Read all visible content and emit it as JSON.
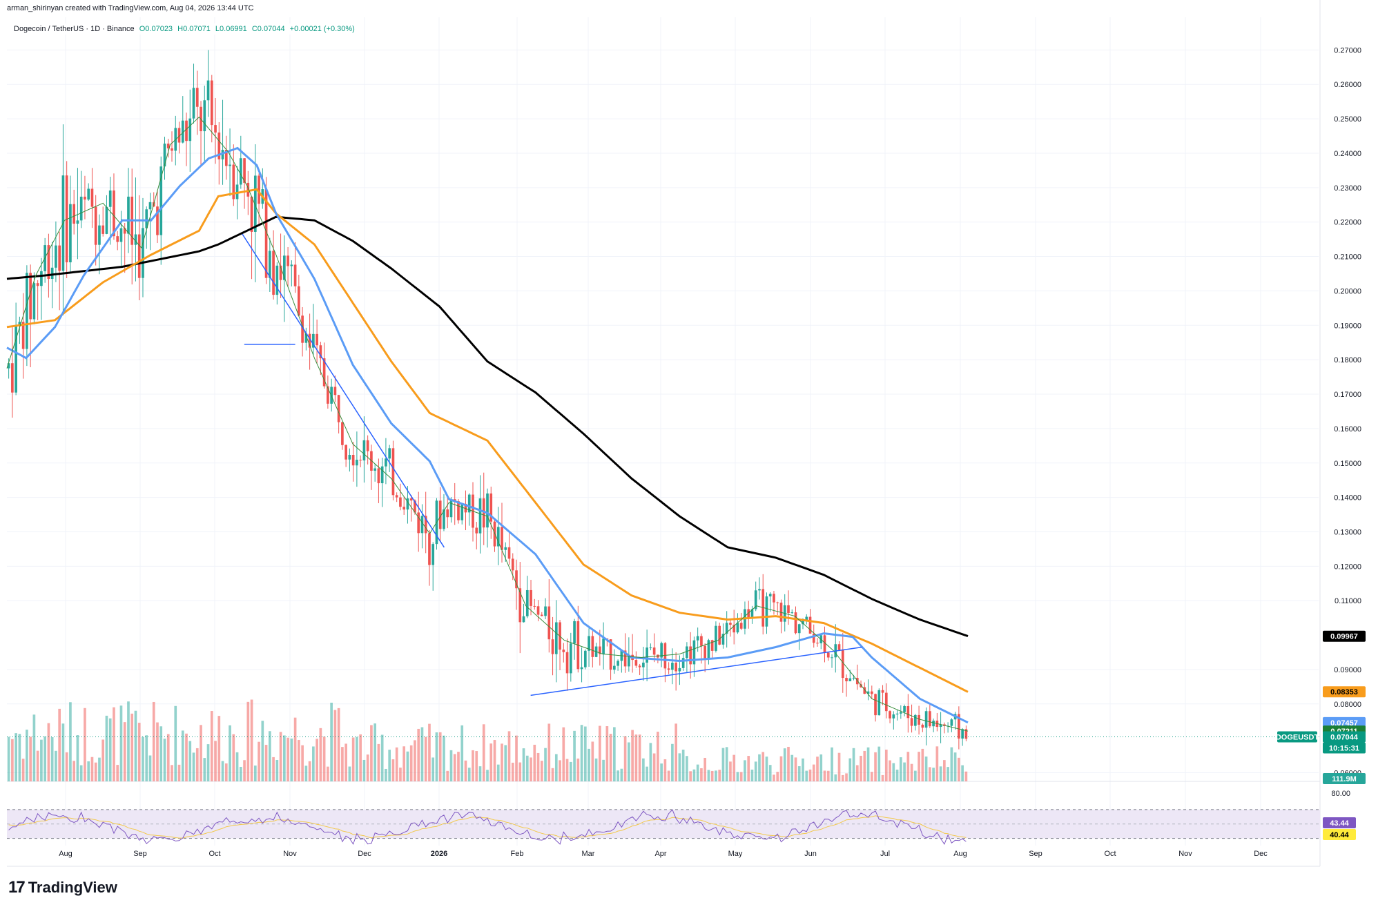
{
  "header": {
    "created_by": "arman_shirinyan created with TradingView.com, Aug 04, 2026 13:44 UTC"
  },
  "legend": {
    "symbol": "Dogecoin / TetherUS · 1D · Binance",
    "open": "O0.07023",
    "high": "H0.07071",
    "low": "L0.06991",
    "close": "C0.07044",
    "change": "+0.00021 (+0.30%)"
  },
  "chart_data": {
    "type": "candlestick",
    "y_ticks": [
      "0.27000",
      "0.26000",
      "0.25000",
      "0.24000",
      "0.23000",
      "0.22000",
      "0.21000",
      "0.20000",
      "0.19000",
      "0.18000",
      "0.17000",
      "0.16000",
      "0.15000",
      "0.14000",
      "0.13000",
      "0.12000",
      "0.11000",
      "0.09000",
      "0.08000",
      "0.06000"
    ],
    "x_ticks": [
      "Aug",
      "Sep",
      "Oct",
      "Nov",
      "Dec",
      "2026",
      "Feb",
      "Mar",
      "Apr",
      "May",
      "Jun",
      "Jul",
      "Aug",
      "Sep",
      "Oct",
      "Nov",
      "Dec"
    ],
    "ylim": [
      0.0575,
      0.2795
    ],
    "series": [
      {
        "label": "black",
        "color": "#000000",
        "x": [
          0,
          0.04,
          0.12,
          0.2,
          0.22,
          0.28,
          0.32,
          0.36,
          0.4,
          0.45,
          0.5,
          0.55,
          0.6,
          0.65,
          0.7,
          0.75,
          0.8,
          0.85,
          0.9,
          0.95,
          1.0
        ],
        "values": [
          0.2035,
          0.2045,
          0.207,
          0.2115,
          0.2135,
          0.2215,
          0.2205,
          0.2145,
          0.2065,
          0.1955,
          0.1795,
          0.1705,
          0.1585,
          0.1455,
          0.1345,
          0.1255,
          0.1225,
          0.1175,
          0.1105,
          0.1045,
          0.0997
        ]
      },
      {
        "label": "orange",
        "color": "#f89c1c",
        "x": [
          0,
          0.05,
          0.1,
          0.15,
          0.2,
          0.22,
          0.26,
          0.28,
          0.32,
          0.36,
          0.4,
          0.44,
          0.47,
          0.5,
          0.55,
          0.6,
          0.65,
          0.7,
          0.75,
          0.8,
          0.85,
          0.9,
          1.0
        ],
        "values": [
          0.1895,
          0.1915,
          0.2025,
          0.2105,
          0.2175,
          0.2275,
          0.2295,
          0.2225,
          0.2135,
          0.1965,
          0.1795,
          0.1645,
          0.1605,
          0.1565,
          0.1385,
          0.1205,
          0.1115,
          0.1065,
          0.1045,
          0.1055,
          0.1035,
          0.0975,
          0.0835
        ]
      },
      {
        "label": "blue",
        "color": "#5b9cf6",
        "x": [
          0,
          0.02,
          0.05,
          0.08,
          0.12,
          0.15,
          0.18,
          0.21,
          0.24,
          0.26,
          0.28,
          0.32,
          0.36,
          0.4,
          0.44,
          0.46,
          0.5,
          0.55,
          0.6,
          0.65,
          0.7,
          0.75,
          0.8,
          0.85,
          0.88,
          0.9,
          0.95,
          1.0
        ],
        "values": [
          0.1835,
          0.1805,
          0.1895,
          0.2045,
          0.2205,
          0.2205,
          0.2305,
          0.2385,
          0.2415,
          0.2365,
          0.2225,
          0.2035,
          0.1785,
          0.1615,
          0.1505,
          0.1395,
          0.1355,
          0.1235,
          0.1035,
          0.0935,
          0.0925,
          0.0935,
          0.0965,
          0.1005,
          0.0995,
          0.0935,
          0.0815,
          0.0746
        ]
      },
      {
        "label": "green",
        "color": "#388e3c",
        "x": [
          0,
          0.03,
          0.06,
          0.1,
          0.14,
          0.17,
          0.2,
          0.23,
          0.25,
          0.28,
          0.32,
          0.36,
          0.4,
          0.44,
          0.46,
          0.5,
          0.54,
          0.58,
          0.62,
          0.66,
          0.7,
          0.74,
          0.78,
          0.82,
          0.86,
          0.9,
          0.95,
          1.0
        ],
        "values": [
          0.1775,
          0.2045,
          0.2205,
          0.2255,
          0.2125,
          0.2425,
          0.2505,
          0.2405,
          0.2305,
          0.2105,
          0.1805,
          0.1555,
          0.1455,
          0.1295,
          0.1385,
          0.1345,
          0.1085,
          0.0985,
          0.0945,
          0.0935,
          0.0945,
          0.0985,
          0.1085,
          0.1055,
          0.0955,
          0.0815,
          0.0755,
          0.0721
        ]
      }
    ],
    "trendlines": [
      {
        "x": [
          0.245,
          0.455
        ],
        "values": [
          0.2165,
          0.1255
        ],
        "color": "#2962ff"
      },
      {
        "x": [
          0.247,
          0.3
        ],
        "values": [
          0.1845,
          0.1845
        ],
        "color": "#2962ff"
      },
      {
        "x": [
          0.545,
          0.89
        ],
        "values": [
          0.0825,
          0.0965
        ],
        "color": "#2962ff"
      }
    ],
    "last_price_line": 0.07044,
    "price_tags": [
      {
        "value": 0.09967,
        "label": "0.09967",
        "bg": "#000000",
        "fg": "#ffffff"
      },
      {
        "value": 0.08353,
        "label": "0.08353",
        "bg": "#f89c1c",
        "fg": "#000000"
      },
      {
        "value": 0.07457,
        "label": "0.07457",
        "bg": "#5b9cf6",
        "fg": "#ffffff"
      },
      {
        "value": 0.07211,
        "label": "0.07211",
        "bg": "#1b7f36",
        "fg": "#ffffff"
      },
      {
        "value": 0.07044,
        "label": "0.07044",
        "bg": "#089981",
        "fg": "#ffffff"
      }
    ],
    "symbol_tag": "DOGEUSDT",
    "countdown": "10:15:31",
    "volume_label": "111.9M",
    "rsi": {
      "levels": [
        "80.00"
      ],
      "value_tags": [
        {
          "label": "43.44",
          "bg": "#7e57c2",
          "fg": "#ffffff"
        },
        {
          "label": "40.44",
          "bg": "#ffeb3b",
          "fg": "#000000"
        }
      ],
      "rsi_color": "#7e57c2",
      "ma_color": "#f2c94c"
    },
    "colors": {
      "up": "#26a69a",
      "down": "#ef5350",
      "band": "#ede7f6",
      "grid": "#f0f3fa"
    }
  },
  "footer": {
    "logo_mark": "17",
    "logo_text": "TradingView"
  }
}
